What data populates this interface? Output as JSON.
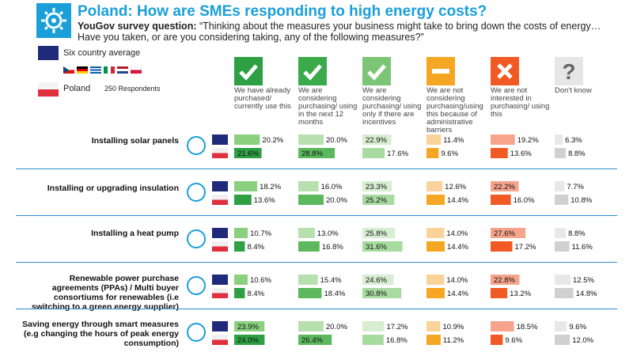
{
  "header": {
    "title": "Poland: How are SMEs responding to high energy costs?",
    "question_lead": "YouGov survey question:",
    "question_text": "“Thinking about the measures your business might take to bring down the costs of energy… Have you taken, or are you considering taking, any of the following measures?”"
  },
  "legend": {
    "average_label": "Six country average",
    "poland_label": "Poland",
    "respondents": "250 Respondents",
    "average_color": "#1f2a7a",
    "poland_color": "#e0303e"
  },
  "chart_data": {
    "type": "bar",
    "columns": [
      {
        "label": "We have already purchased/ currently use this",
        "icon": "check-icon",
        "light": "#8ad07e",
        "dark": "#2ea043"
      },
      {
        "label": "We are considering purchasing/ using in the next 12 months",
        "icon": "check-icon",
        "light": "#b7e0ae",
        "dark": "#5cb85c"
      },
      {
        "label": "We are considering purchasing/ using only if there are incentives",
        "icon": "check-icon",
        "light": "#d8eed2",
        "dark": "#a8dba0"
      },
      {
        "label": "We are not considering purchasing/using this because of administrative barriers",
        "icon": "minus-icon",
        "light": "#f9d39a",
        "dark": "#f5a623"
      },
      {
        "label": "We are not interested in purchasing/ using this",
        "icon": "cross-icon",
        "light": "#f6a58c",
        "dark": "#f15a24"
      },
      {
        "label": "Don't know",
        "icon": "question-icon",
        "light": "#e8e8e8",
        "dark": "#d0d0d0"
      }
    ],
    "categories": [
      "Installing solar panels",
      "Installing or upgrading insulation",
      "Installing a heat pump",
      "Renewable power purchase agreements (PPAs) / Multi buyer consortiums for renewables (i.e switching to a green energy supplier)",
      "Saving energy through smart measures (e.g changing the hours of peak energy consumption)"
    ],
    "series": [
      {
        "name": "Six country average",
        "values": [
          [
            20.2,
            20.0,
            22.9,
            11.4,
            19.2,
            6.3
          ],
          [
            18.2,
            16.0,
            23.3,
            12.6,
            22.2,
            7.7
          ],
          [
            10.7,
            13.0,
            25.8,
            14.0,
            27.6,
            8.8
          ],
          [
            10.6,
            15.4,
            24.6,
            14.0,
            22.8,
            12.5
          ],
          [
            23.9,
            20.0,
            17.2,
            10.9,
            18.5,
            9.6
          ]
        ]
      },
      {
        "name": "Poland",
        "values": [
          [
            21.6,
            28.8,
            17.6,
            9.6,
            13.6,
            8.8
          ],
          [
            13.6,
            20.0,
            25.2,
            14.4,
            16.0,
            10.8
          ],
          [
            8.4,
            16.8,
            31.6,
            14.4,
            17.2,
            11.6
          ],
          [
            8.4,
            18.4,
            30.8,
            14.4,
            13.2,
            14.8
          ],
          [
            24.0,
            26.4,
            16.8,
            11.2,
            9.6,
            12.0
          ]
        ]
      }
    ],
    "unit": "%"
  }
}
